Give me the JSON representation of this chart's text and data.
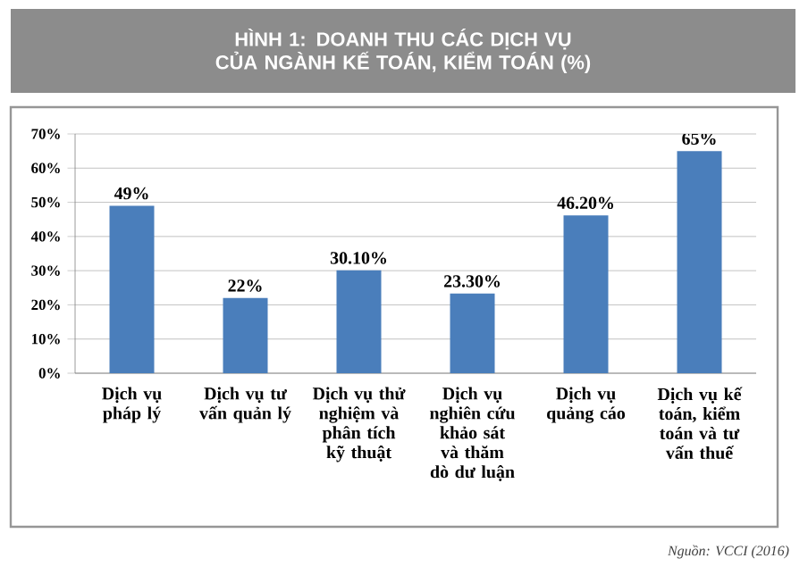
{
  "chart_data": {
    "type": "bar",
    "title": "HÌNH 1: DOANH THU CÁC DỊCH VỤ CỦA NGÀNH KẾ TOÁN, KIỂM TOÁN (%)",
    "categories": [
      "Dịch vụ pháp lý",
      "Dịch vụ tư vấn quản lý",
      "Dịch vụ thử nghiệm và phân tích kỹ thuật",
      "Dịch vụ nghiên cứu khảo sát và thăm dò dư luận",
      "Dịch vụ quảng cáo",
      "Dịch vụ kế toán, kiểm toán và tư vấn thuế"
    ],
    "values": [
      49,
      22,
      30.1,
      23.3,
      46.2,
      65
    ],
    "value_labels": [
      "49%",
      "22%",
      "30.10%",
      "23.30%",
      "46.20%",
      "65%"
    ],
    "color": "#4a7ebb",
    "ylim": [
      0,
      70
    ],
    "yticks": [
      {
        "value": 0,
        "label": "0%"
      },
      {
        "value": 10,
        "label": "10%"
      },
      {
        "value": 20,
        "label": "20%"
      },
      {
        "value": 30,
        "label": "30%"
      },
      {
        "value": 40,
        "label": "40%"
      },
      {
        "value": 50,
        "label": "50%"
      },
      {
        "value": 60,
        "label": "60%"
      },
      {
        "value": 70,
        "label": "70%"
      }
    ],
    "grid": "y",
    "annotations": [
      "Nguồn: VCCI (2016)"
    ]
  }
}
